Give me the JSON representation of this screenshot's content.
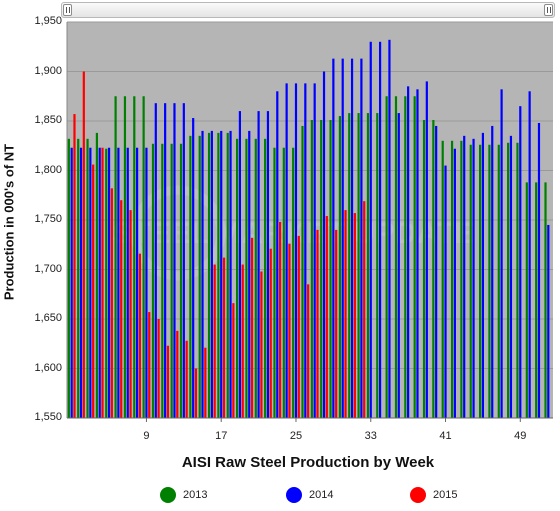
{
  "chart_data": {
    "type": "bar",
    "title": "",
    "xlabel": "AISI Raw Steel Production by Week",
    "ylabel": "Production in 000's of NT",
    "ylim": [
      1550,
      1950
    ],
    "yticks": [
      1550,
      1600,
      1650,
      1700,
      1750,
      1800,
      1850,
      1900,
      1950
    ],
    "ytick_labels": [
      "1,550",
      "1,600",
      "1,650",
      "1,700",
      "1,750",
      "1,800",
      "1,850",
      "1,900",
      "1,950"
    ],
    "xlim": [
      0.5,
      52.5
    ],
    "xticks": [
      9,
      17,
      25,
      33,
      41,
      49
    ],
    "grid": "horizontal",
    "legend": "bottom",
    "weeks": [
      1,
      2,
      3,
      4,
      5,
      6,
      7,
      8,
      9,
      10,
      11,
      12,
      13,
      14,
      15,
      16,
      17,
      18,
      19,
      20,
      21,
      22,
      23,
      24,
      25,
      26,
      27,
      28,
      29,
      30,
      31,
      32,
      33,
      34,
      35,
      36,
      37,
      38,
      39,
      40,
      41,
      42,
      43,
      44,
      45,
      46,
      47,
      48,
      49,
      50,
      51,
      52
    ],
    "series": [
      {
        "name": "2013",
        "color": "#008000",
        "values": [
          1832,
          1832,
          1832,
          1838,
          1822,
          1875,
          1875,
          1875,
          1875,
          1827,
          1827,
          1827,
          1827,
          1835,
          1835,
          1838,
          1838,
          1838,
          1832,
          1832,
          1832,
          1832,
          1823,
          1823,
          1823,
          1845,
          1851,
          1851,
          1851,
          1855,
          1858,
          1858,
          1858,
          1858,
          1875,
          1875,
          1875,
          1875,
          1851,
          1851,
          1830,
          1830,
          1830,
          1826,
          1826,
          1826,
          1826,
          1828,
          1828,
          1788,
          1788,
          1788
        ]
      },
      {
        "name": "2014",
        "color": "#0000ff",
        "values": [
          1823,
          1823,
          1823,
          1823,
          1823,
          1823,
          1823,
          1823,
          1823,
          1868,
          1868,
          1868,
          1868,
          1853,
          1840,
          1840,
          1840,
          1840,
          1860,
          1840,
          1860,
          1860,
          1880,
          1888,
          1888,
          1888,
          1888,
          1900,
          1913,
          1913,
          1913,
          1913,
          1930,
          1930,
          1932,
          1858,
          1885,
          1882,
          1890,
          1845,
          1805,
          1822,
          1835,
          1832,
          1838,
          1845,
          1882,
          1835,
          1865,
          1880,
          1848,
          1745
        ]
      },
      {
        "name": "2015",
        "color": "#ff0000",
        "values": [
          1857,
          1900,
          1806,
          1823,
          1782,
          1770,
          1760,
          1716,
          1657,
          1650,
          1623,
          1638,
          1628,
          1600,
          1621,
          1705,
          1712,
          1666,
          1705,
          1732,
          1698,
          1721,
          1748,
          1726,
          1734,
          1685,
          1740,
          1754,
          1740,
          1760,
          1757,
          1769
        ]
      }
    ]
  }
}
